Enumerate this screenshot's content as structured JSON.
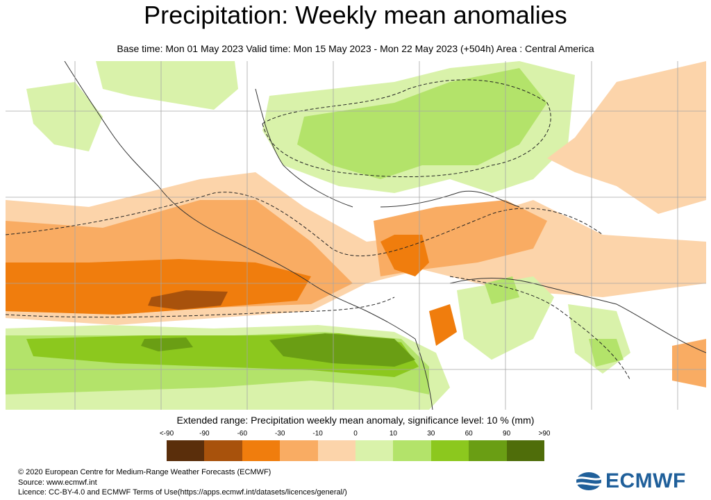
{
  "title": "Precipitation: Weekly mean anomalies",
  "subtitle": "Base time: Mon 01 May 2023 Valid time: Mon 15 May 2023 - Mon 22 May 2023 (+504h) Area : Central America",
  "legend": {
    "title": "Extended range: Precipitation weekly mean anomaly, significance level: 10 % (mm)",
    "ticks": [
      "<-90",
      "-90",
      "-60",
      "-30",
      "-10",
      "0",
      "10",
      "30",
      "60",
      "90",
      ">90"
    ],
    "colors": [
      "#5a2e0b",
      "#a8520c",
      "#f07d0d",
      "#f9ac63",
      "#fcd4aa",
      "#d9f2aa",
      "#b3e36a",
      "#8cc81e",
      "#6a9e14",
      "#4f6d0a"
    ]
  },
  "footer": {
    "copyright": "© 2020 European Centre for Medium-Range Weather Forecasts (ECMWF)",
    "source": "Source: www.ecmwf.int",
    "licence": "Licence: CC-BY-4.0 and ECMWF Terms of Use(https://apps.ecmwf.int/datasets/licences/general/)"
  },
  "logo": {
    "text": "ECMWF",
    "color": "#1f5f9a"
  }
}
